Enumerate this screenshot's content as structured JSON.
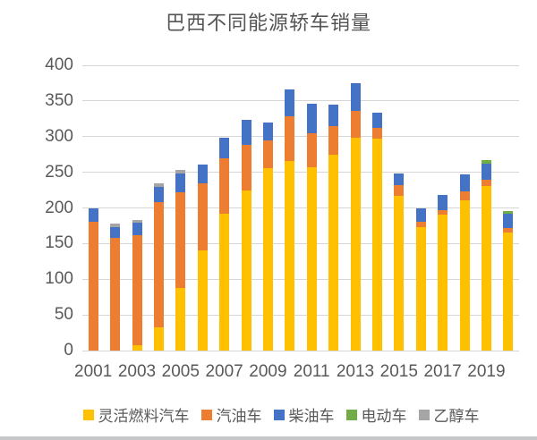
{
  "title": "巴西不同能源轿车销量",
  "colors": {
    "flex_fuel": "#FFC000",
    "gasoline": "#ED7D31",
    "diesel": "#4472C4",
    "electric": "#70AD47",
    "ethanol": "#A5A5A5",
    "gridline": "#D6D6D6",
    "axis_text": "#595959",
    "title_text": "#555555"
  },
  "chart_data": {
    "type": "bar",
    "stacked": true,
    "title": "巴西不同能源轿车销量",
    "xlabel": "",
    "ylabel": "",
    "ylim": [
      0,
      400
    ],
    "ytick_step": 50,
    "y_tick_labels": [
      "0",
      "50",
      "100",
      "150",
      "200",
      "250",
      "300",
      "350",
      "400"
    ],
    "grid": true,
    "legend_position": "bottom",
    "categories": [
      "2001",
      "2002",
      "2003",
      "2004",
      "2005",
      "2006",
      "2007",
      "2008",
      "2009",
      "2010",
      "2011",
      "2012",
      "2013",
      "2014",
      "2015",
      "2016",
      "2017",
      "2018",
      "2019",
      "2020"
    ],
    "x_tick_labels": [
      "2001",
      "2003",
      "2005",
      "2007",
      "2009",
      "2011",
      "2013",
      "2015",
      "2017",
      "2019"
    ],
    "series": [
      {
        "name": "灵活燃料汽车",
        "color": "#FFC000",
        "values": [
          0,
          0,
          7,
          33,
          88,
          140,
          192,
          224,
          256,
          266,
          257,
          275,
          298,
          297,
          217,
          173,
          191,
          211,
          231,
          166
        ]
      },
      {
        "name": "汽油车",
        "color": "#ED7D31",
        "values": [
          181,
          158,
          155,
          175,
          134,
          95,
          78,
          65,
          39,
          63,
          48,
          40,
          38,
          15,
          15,
          8,
          6,
          12,
          9,
          6
        ]
      },
      {
        "name": "柴油车",
        "color": "#4472C4",
        "values": [
          19,
          15,
          17,
          21,
          26,
          26,
          29,
          34,
          25,
          37,
          41,
          30,
          39,
          22,
          16,
          18,
          21,
          24,
          22,
          20
        ]
      },
      {
        "name": "电动车",
        "color": "#70AD47",
        "values": [
          0,
          0,
          0,
          0,
          0,
          0,
          0,
          0,
          0,
          0,
          0,
          0,
          0,
          0,
          0,
          0,
          0,
          0,
          5,
          4
        ]
      },
      {
        "name": "乙醇车",
        "color": "#A5A5A5",
        "values": [
          0,
          5,
          4,
          5,
          5,
          0,
          0,
          0,
          0,
          0,
          0,
          0,
          0,
          0,
          0,
          0,
          0,
          0,
          0,
          0
        ]
      }
    ]
  }
}
